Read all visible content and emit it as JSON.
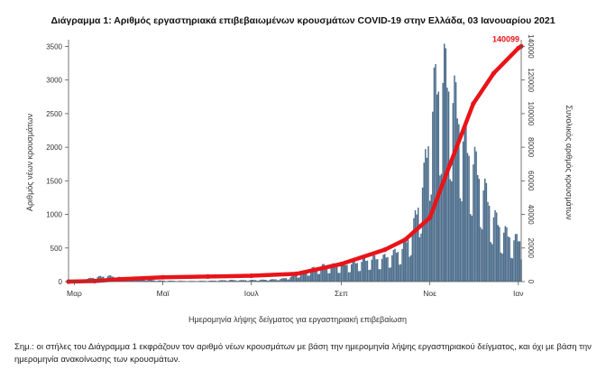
{
  "chart_data": {
    "type": "bar+line",
    "title": "Διάγραμμα 1: Αριθμός εργαστηριακά επιβεβαιωμένων κρουσμάτων COVID-19 στην Ελλάδα, 03 Ιανουαρίου 2021",
    "xlabel": "Ημερομηνία λήψης δείγματος για εργαστηριακή επιβεβαίωση",
    "ylabel": "Αριθμός νέων κρουσμάτων",
    "y2label": "Συνολικός αριθμός κρουσμάτων",
    "xlim": [
      "2020-02-26",
      "2021-01-03"
    ],
    "ylim": [
      0,
      3600
    ],
    "y2lim": [
      0,
      144000
    ],
    "xticks": [
      {
        "date": "2020-03-01",
        "label": "Μαρ"
      },
      {
        "date": "2020-05-01",
        "label": "Μαϊ"
      },
      {
        "date": "2020-07-01",
        "label": "Ιουλ"
      },
      {
        "date": "2020-09-01",
        "label": "Σεπ"
      },
      {
        "date": "2020-11-01",
        "label": "Νοε"
      },
      {
        "date": "2021-01-01",
        "label": "Ιαν"
      }
    ],
    "yticks": [
      0,
      500,
      1000,
      1500,
      2000,
      2500,
      3000,
      3500
    ],
    "y2ticks": [
      0,
      20000,
      40000,
      60000,
      80000,
      100000,
      120000,
      140000
    ],
    "weekly_new_cases": [
      {
        "week_start": "2020-02-26",
        "avg": 3
      },
      {
        "week_start": "2020-03-04",
        "avg": 12
      },
      {
        "week_start": "2020-03-11",
        "avg": 45
      },
      {
        "week_start": "2020-03-18",
        "avg": 70
      },
      {
        "week_start": "2020-03-25",
        "avg": 80
      },
      {
        "week_start": "2020-04-01",
        "avg": 60
      },
      {
        "week_start": "2020-04-08",
        "avg": 45
      },
      {
        "week_start": "2020-04-15",
        "avg": 35
      },
      {
        "week_start": "2020-04-22",
        "avg": 25
      },
      {
        "week_start": "2020-04-29",
        "avg": 15
      },
      {
        "week_start": "2020-05-06",
        "avg": 12
      },
      {
        "week_start": "2020-05-13",
        "avg": 10
      },
      {
        "week_start": "2020-05-20",
        "avg": 8
      },
      {
        "week_start": "2020-05-27",
        "avg": 10
      },
      {
        "week_start": "2020-06-03",
        "avg": 12
      },
      {
        "week_start": "2020-06-10",
        "avg": 18
      },
      {
        "week_start": "2020-06-17",
        "avg": 22
      },
      {
        "week_start": "2020-06-24",
        "avg": 20
      },
      {
        "week_start": "2020-07-01",
        "avg": 22
      },
      {
        "week_start": "2020-07-08",
        "avg": 25
      },
      {
        "week_start": "2020-07-15",
        "avg": 30
      },
      {
        "week_start": "2020-07-22",
        "avg": 40
      },
      {
        "week_start": "2020-07-29",
        "avg": 70
      },
      {
        "week_start": "2020-08-05",
        "avg": 130
      },
      {
        "week_start": "2020-08-12",
        "avg": 180
      },
      {
        "week_start": "2020-08-19",
        "avg": 220
      },
      {
        "week_start": "2020-08-26",
        "avg": 230
      },
      {
        "week_start": "2020-09-02",
        "avg": 240
      },
      {
        "week_start": "2020-09-09",
        "avg": 260
      },
      {
        "week_start": "2020-09-16",
        "avg": 300
      },
      {
        "week_start": "2020-09-23",
        "avg": 330
      },
      {
        "week_start": "2020-09-30",
        "avg": 340
      },
      {
        "week_start": "2020-10-07",
        "avg": 400
      },
      {
        "week_start": "2020-10-14",
        "avg": 500
      },
      {
        "week_start": "2020-10-21",
        "avg": 800
      },
      {
        "week_start": "2020-10-28",
        "avg": 1500
      },
      {
        "week_start": "2020-11-04",
        "avg": 2700
      },
      {
        "week_start": "2020-11-11",
        "avg": 3000
      },
      {
        "week_start": "2020-11-18",
        "avg": 2600
      },
      {
        "week_start": "2020-11-25",
        "avg": 2000
      },
      {
        "week_start": "2020-12-02",
        "avg": 1700
      },
      {
        "week_start": "2020-12-09",
        "avg": 1300
      },
      {
        "week_start": "2020-12-16",
        "avg": 900
      },
      {
        "week_start": "2020-12-23",
        "avg": 700
      },
      {
        "week_start": "2020-12-30",
        "avg": 600
      }
    ],
    "cumulative_cases": [
      {
        "date": "2020-02-26",
        "value": 0
      },
      {
        "date": "2020-03-15",
        "value": 300
      },
      {
        "date": "2020-04-01",
        "value": 1400
      },
      {
        "date": "2020-05-01",
        "value": 2600
      },
      {
        "date": "2020-06-01",
        "value": 3000
      },
      {
        "date": "2020-07-01",
        "value": 3500
      },
      {
        "date": "2020-08-01",
        "value": 4600
      },
      {
        "date": "2020-09-01",
        "value": 10500
      },
      {
        "date": "2020-10-01",
        "value": 19000
      },
      {
        "date": "2020-10-15",
        "value": 25000
      },
      {
        "date": "2020-11-01",
        "value": 38000
      },
      {
        "date": "2020-11-15",
        "value": 70000
      },
      {
        "date": "2020-12-01",
        "value": 106000
      },
      {
        "date": "2020-12-15",
        "value": 124000
      },
      {
        "date": "2021-01-01",
        "value": 139000
      },
      {
        "date": "2021-01-03",
        "value": 140099
      }
    ],
    "annotations": [
      {
        "text": "140099",
        "date": "2021-01-03",
        "value": 140099
      }
    ],
    "colors": {
      "bars": "#4d6e8c",
      "cumulative": "#e8141a"
    },
    "grid": false,
    "legend": "none"
  },
  "footnote": "Σημ.: οι στήλες του Διάγραμμα 1 εκφράζουν τον αριθμό νέων κρουσμάτων με βάση την ημερομηνία λήψης εργαστηριακού δείγματος, και όχι με βάση την ημερομηνία ανακοίνωσης των κρουσμάτων."
}
